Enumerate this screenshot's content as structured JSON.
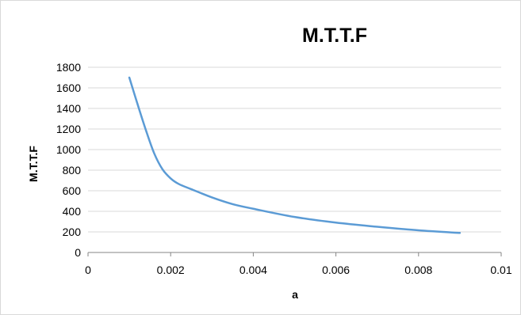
{
  "chart_data": {
    "type": "line",
    "title": "M.T.T.F",
    "xlabel": "a",
    "ylabel": "M.T.T.F",
    "xlim": [
      0,
      0.01
    ],
    "ylim": [
      0,
      1800
    ],
    "x_ticks": [
      "0",
      "0.002",
      "0.004",
      "0.006",
      "0.008",
      "0.01"
    ],
    "y_ticks": [
      "0",
      "200",
      "400",
      "600",
      "800",
      "1000",
      "1200",
      "1400",
      "1600",
      "1800"
    ],
    "grid": "horizontal",
    "line_color": "#5b9bd5",
    "x": [
      0.001,
      0.0012,
      0.0014,
      0.0016,
      0.0018,
      0.002,
      0.0022,
      0.0025,
      0.003,
      0.0035,
      0.004,
      0.005,
      0.006,
      0.007,
      0.008,
      0.009
    ],
    "values": [
      1700,
      1440,
      1190,
      965,
      810,
      720,
      665,
      615,
      535,
      470,
      425,
      345,
      290,
      250,
      215,
      190
    ]
  }
}
